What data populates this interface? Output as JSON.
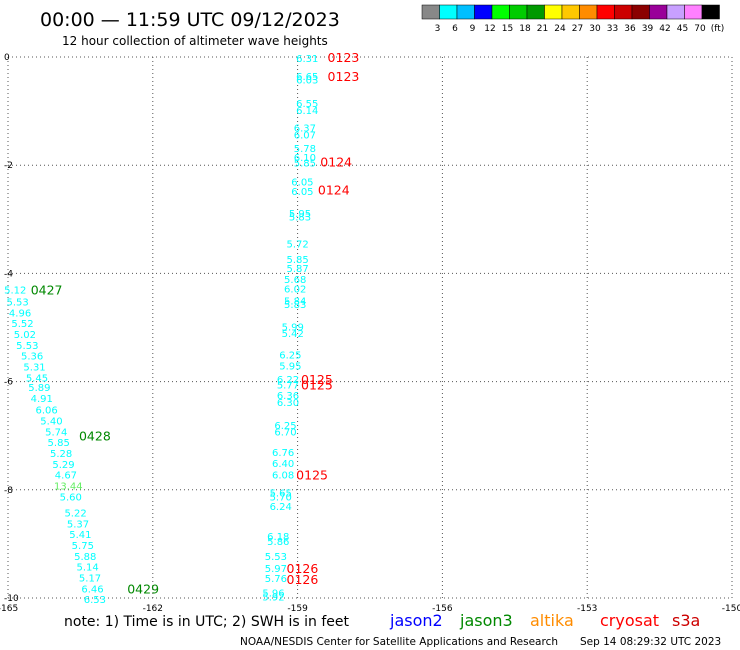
{
  "header": {
    "title": "00:00 — 11:59 UTC 09/12/2023",
    "subtitle": "12 hour collection of altimeter wave heights"
  },
  "legend": {
    "colors": [
      "#888888",
      "#00ffff",
      "#00bfff",
      "#0000ff",
      "#00ff00",
      "#00cc00",
      "#009900",
      "#ffff00",
      "#ffc800",
      "#ff8c00",
      "#ff0000",
      "#cc0000",
      "#8b0000",
      "#990099",
      "#c8a0ff",
      "#ff80ff",
      "#000000"
    ],
    "labels": [
      "3",
      "6",
      "9",
      "12",
      "15",
      "18",
      "21",
      "24",
      "27",
      "30",
      "33",
      "36",
      "39",
      "42",
      "45",
      "70",
      "(ft)"
    ]
  },
  "footer": {
    "note": "note: 1) Time is in UTC; 2) SWH is in feet",
    "sats": [
      {
        "name": "jason2",
        "color": "#0000ff"
      },
      {
        "name": "jason3",
        "color": "#008800"
      },
      {
        "name": "altika",
        "color": "#ff8c00"
      },
      {
        "name": "cryosat",
        "color": "#ff0000"
      },
      {
        "name": "s3a",
        "color": "#cc0000"
      }
    ],
    "credit": "NOAA/NESDIS Center for Satellite Applications and Research",
    "timestamp": "Sep 14 08:29:32 UTC 2023"
  },
  "chart_data": {
    "type": "scatter",
    "xlim": [
      -165,
      -150
    ],
    "ylim": [
      -10,
      0
    ],
    "xticks": [
      -165,
      -162,
      -159,
      -156,
      -153,
      -150
    ],
    "xtick_labels": [
      "-165",
      "-162",
      "-159",
      "-156",
      "-153",
      "-150"
    ],
    "yticks": [
      0,
      -2,
      -4,
      -6,
      -8,
      -10
    ],
    "ytick_labels": [
      "0",
      "-2",
      "-4",
      "-6",
      "-8",
      "-10"
    ],
    "grid": true,
    "points": [
      {
        "x": -158.8,
        "y": -0.02,
        "label": "6.31",
        "color": "#00ffff"
      },
      {
        "x": -158.8,
        "y": -0.35,
        "label": "6.65",
        "color": "#00ffff"
      },
      {
        "x": -158.8,
        "y": -0.42,
        "label": "6.03",
        "color": "#00ffff"
      },
      {
        "x": -158.8,
        "y": -0.85,
        "label": "6.55",
        "color": "#00ffff"
      },
      {
        "x": -158.8,
        "y": -0.98,
        "label": "6.14",
        "color": "#00ffff"
      },
      {
        "x": -158.85,
        "y": -1.3,
        "label": "6.37",
        "color": "#00ffff"
      },
      {
        "x": -158.85,
        "y": -1.43,
        "label": "6.07",
        "color": "#00ffff"
      },
      {
        "x": -158.85,
        "y": -1.68,
        "label": "5.78",
        "color": "#00ffff"
      },
      {
        "x": -158.85,
        "y": -1.85,
        "label": "6.10",
        "color": "#00ffff"
      },
      {
        "x": -158.85,
        "y": -1.95,
        "label": "5.85",
        "color": "#00ffff"
      },
      {
        "x": -158.9,
        "y": -2.3,
        "label": "6.05",
        "color": "#00ffff"
      },
      {
        "x": -158.9,
        "y": -2.48,
        "label": "6.05",
        "color": "#00ffff"
      },
      {
        "x": -158.95,
        "y": -2.88,
        "label": "5.95",
        "color": "#00ffff"
      },
      {
        "x": -158.95,
        "y": -2.95,
        "label": "5.83",
        "color": "#00ffff"
      },
      {
        "x": -159.0,
        "y": -3.45,
        "label": "5.72",
        "color": "#00ffff"
      },
      {
        "x": -159.0,
        "y": -3.73,
        "label": "5.85",
        "color": "#00ffff"
      },
      {
        "x": -159.0,
        "y": -3.9,
        "label": "5.87",
        "color": "#00ffff"
      },
      {
        "x": -159.05,
        "y": -4.1,
        "label": "5.68",
        "color": "#00ffff"
      },
      {
        "x": -159.05,
        "y": -4.28,
        "label": "6.02",
        "color": "#00ffff"
      },
      {
        "x": -159.05,
        "y": -4.5,
        "label": "5.84",
        "color": "#00ffff"
      },
      {
        "x": -159.05,
        "y": -4.57,
        "label": "5.83",
        "color": "#00ffff"
      },
      {
        "x": -159.1,
        "y": -4.98,
        "label": "5.99",
        "color": "#00ffff"
      },
      {
        "x": -159.1,
        "y": -5.1,
        "label": "5.42",
        "color": "#00ffff"
      },
      {
        "x": -159.15,
        "y": -5.5,
        "label": "6.25",
        "color": "#00ffff"
      },
      {
        "x": -159.15,
        "y": -5.7,
        "label": "5.95",
        "color": "#00ffff"
      },
      {
        "x": -159.2,
        "y": -5.95,
        "label": "6.22",
        "color": "#00ffff"
      },
      {
        "x": -159.2,
        "y": -6.05,
        "label": "5.77",
        "color": "#00ffff"
      },
      {
        "x": -159.2,
        "y": -6.25,
        "label": "6.36",
        "color": "#00ffff"
      },
      {
        "x": -159.2,
        "y": -6.38,
        "label": "6.30",
        "color": "#00ffff"
      },
      {
        "x": -159.25,
        "y": -6.8,
        "label": "6.25",
        "color": "#00ffff"
      },
      {
        "x": -159.25,
        "y": -6.92,
        "label": "6.70",
        "color": "#00ffff"
      },
      {
        "x": -159.3,
        "y": -7.3,
        "label": "6.76",
        "color": "#00ffff"
      },
      {
        "x": -159.3,
        "y": -7.5,
        "label": "6.40",
        "color": "#00ffff"
      },
      {
        "x": -159.3,
        "y": -7.72,
        "label": "6.08",
        "color": "#00ffff"
      },
      {
        "x": -159.35,
        "y": -8.05,
        "label": "5.65",
        "color": "#00ffff"
      },
      {
        "x": -159.35,
        "y": -8.12,
        "label": "5.70",
        "color": "#00ffff"
      },
      {
        "x": -159.35,
        "y": -8.3,
        "label": "6.24",
        "color": "#00ffff"
      },
      {
        "x": -159.4,
        "y": -8.85,
        "label": "6.18",
        "color": "#00ffff"
      },
      {
        "x": -159.4,
        "y": -8.95,
        "label": "5.86",
        "color": "#00ffff"
      },
      {
        "x": -159.45,
        "y": -9.22,
        "label": "5.53",
        "color": "#00ffff"
      },
      {
        "x": -159.45,
        "y": -9.45,
        "label": "5.97",
        "color": "#00ffff"
      },
      {
        "x": -159.45,
        "y": -9.63,
        "label": "5.76",
        "color": "#00ffff"
      },
      {
        "x": -159.5,
        "y": -9.9,
        "label": "5.96",
        "color": "#00ffff"
      },
      {
        "x": -159.5,
        "y": -9.97,
        "label": "5.92",
        "color": "#00ffff"
      },
      {
        "x": -164.85,
        "y": -4.3,
        "label": "5.12",
        "color": "#00ffff"
      },
      {
        "x": -164.8,
        "y": -4.52,
        "label": "5.53",
        "color": "#00ffff"
      },
      {
        "x": -164.75,
        "y": -4.72,
        "label": "4.96",
        "color": "#00ffff"
      },
      {
        "x": -164.7,
        "y": -4.92,
        "label": "5.52",
        "color": "#00ffff"
      },
      {
        "x": -164.65,
        "y": -5.12,
        "label": "5.02",
        "color": "#00ffff"
      },
      {
        "x": -164.6,
        "y": -5.32,
        "label": "5.53",
        "color": "#00ffff"
      },
      {
        "x": -164.5,
        "y": -5.52,
        "label": "5.36",
        "color": "#00ffff"
      },
      {
        "x": -164.45,
        "y": -5.72,
        "label": "5.31",
        "color": "#00ffff"
      },
      {
        "x": -164.4,
        "y": -5.92,
        "label": "5.45",
        "color": "#00ffff"
      },
      {
        "x": -164.35,
        "y": -6.1,
        "label": "5.89",
        "color": "#00ffff"
      },
      {
        "x": -164.3,
        "y": -6.3,
        "label": "4.91",
        "color": "#00ffff"
      },
      {
        "x": -164.2,
        "y": -6.52,
        "label": "6.06",
        "color": "#00ffff"
      },
      {
        "x": -164.1,
        "y": -6.72,
        "label": "5.40",
        "color": "#00ffff"
      },
      {
        "x": -164.0,
        "y": -6.92,
        "label": "5.74",
        "color": "#00ffff"
      },
      {
        "x": -163.95,
        "y": -7.12,
        "label": "5.85",
        "color": "#00ffff"
      },
      {
        "x": -163.9,
        "y": -7.32,
        "label": "5.28",
        "color": "#00ffff"
      },
      {
        "x": -163.85,
        "y": -7.52,
        "label": "5.29",
        "color": "#00ffff"
      },
      {
        "x": -163.8,
        "y": -7.72,
        "label": "4.67",
        "color": "#00ffff"
      },
      {
        "x": -163.75,
        "y": -7.92,
        "label": "13.44",
        "color": "#66ee66"
      },
      {
        "x": -163.7,
        "y": -8.12,
        "label": "5.60",
        "color": "#00ffff"
      },
      {
        "x": -163.6,
        "y": -8.42,
        "label": "5.22",
        "color": "#00ffff"
      },
      {
        "x": -163.55,
        "y": -8.62,
        "label": "5.37",
        "color": "#00ffff"
      },
      {
        "x": -163.5,
        "y": -8.82,
        "label": "5.41",
        "color": "#00ffff"
      },
      {
        "x": -163.45,
        "y": -9.02,
        "label": "5.75",
        "color": "#00ffff"
      },
      {
        "x": -163.4,
        "y": -9.22,
        "label": "5.88",
        "color": "#00ffff"
      },
      {
        "x": -163.35,
        "y": -9.42,
        "label": "5.14",
        "color": "#00ffff"
      },
      {
        "x": -163.3,
        "y": -9.62,
        "label": "5.17",
        "color": "#00ffff"
      },
      {
        "x": -163.25,
        "y": -9.82,
        "label": "6.46",
        "color": "#00ffff"
      },
      {
        "x": -163.2,
        "y": -10.02,
        "label": "6.53",
        "color": "#00ffff"
      }
    ],
    "time_labels": [
      {
        "x": -158.05,
        "y": 0.0,
        "label": "0123",
        "color": "#ff0000"
      },
      {
        "x": -158.05,
        "y": -0.35,
        "label": "0123",
        "color": "#ff0000"
      },
      {
        "x": -158.2,
        "y": -1.93,
        "label": "0124",
        "color": "#ff0000"
      },
      {
        "x": -158.25,
        "y": -2.45,
        "label": "0124",
        "color": "#ff0000"
      },
      {
        "x": -158.6,
        "y": -5.95,
        "label": "0125",
        "color": "#ff0000"
      },
      {
        "x": -158.6,
        "y": -6.05,
        "label": "0125",
        "color": "#ff0000"
      },
      {
        "x": -158.7,
        "y": -7.72,
        "label": "0125",
        "color": "#ff0000"
      },
      {
        "x": -158.9,
        "y": -9.45,
        "label": "0126",
        "color": "#ff0000"
      },
      {
        "x": -158.9,
        "y": -9.65,
        "label": "0126",
        "color": "#ff0000"
      },
      {
        "x": -164.2,
        "y": -4.3,
        "label": "0427",
        "color": "#008800"
      },
      {
        "x": -163.2,
        "y": -7.0,
        "label": "0428",
        "color": "#008800"
      },
      {
        "x": -162.2,
        "y": -9.82,
        "label": "0429",
        "color": "#008800"
      }
    ]
  }
}
